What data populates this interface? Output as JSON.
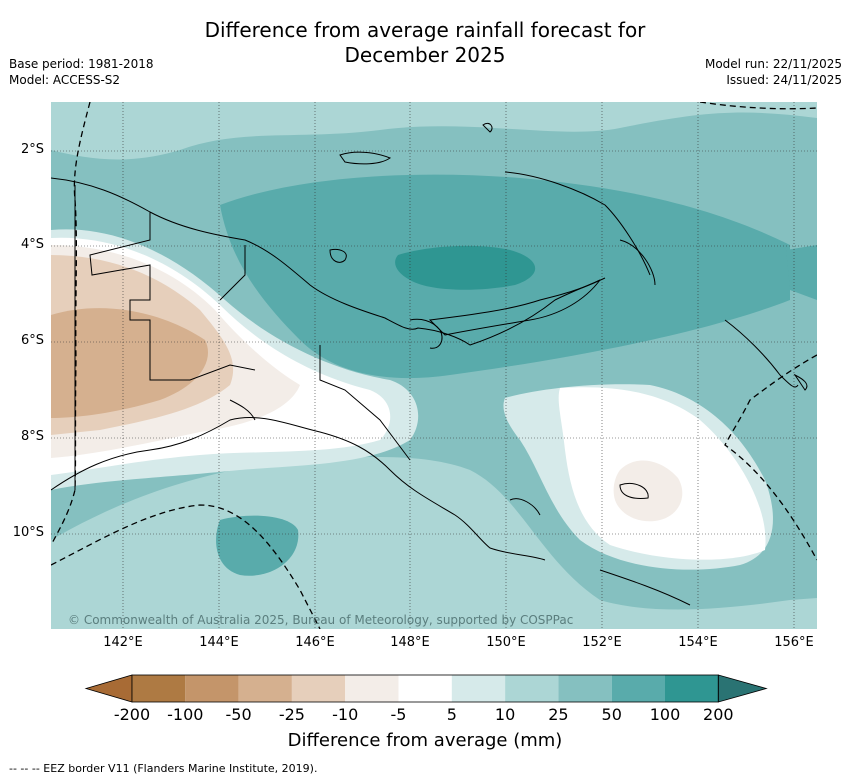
{
  "title_line1": "Difference from average rainfall forecast for",
  "title_line2": "December 2025",
  "base_period": "Base period: 1981-2018",
  "model": "Model: ACCESS-S2",
  "model_run": "Model run: 22/11/2025",
  "issued": "Issued: 24/11/2025",
  "copyright": "© Commonwealth of Australia 2025, Bureau of Meteorology, supported by COSPPac",
  "lat_labels": [
    "2°S",
    "4°S",
    "6°S",
    "8°S",
    "10°S"
  ],
  "lon_labels": [
    "142°E",
    "144°E",
    "146°E",
    "148°E",
    "150°E",
    "152°E",
    "154°E",
    "156°E"
  ],
  "colorbar": {
    "title": "Difference from average (mm)",
    "ticks": [
      "-200",
      "-100",
      "-50",
      "-25",
      "-10",
      "-5",
      "5",
      "10",
      "25",
      "50",
      "100",
      "200"
    ],
    "colors": [
      "#a86b35",
      "#ae7a43",
      "#c4956a",
      "#d5b08f",
      "#e6cfbb",
      "#f3ede8",
      "#ffffff",
      "#d6eaea",
      "#acd6d5",
      "#85c0c0",
      "#59abab",
      "#2f9692",
      "#2a7373"
    ]
  },
  "footnote": "--  --  -- EEZ border V11 (Flanders Marine Institute, 2019)."
}
